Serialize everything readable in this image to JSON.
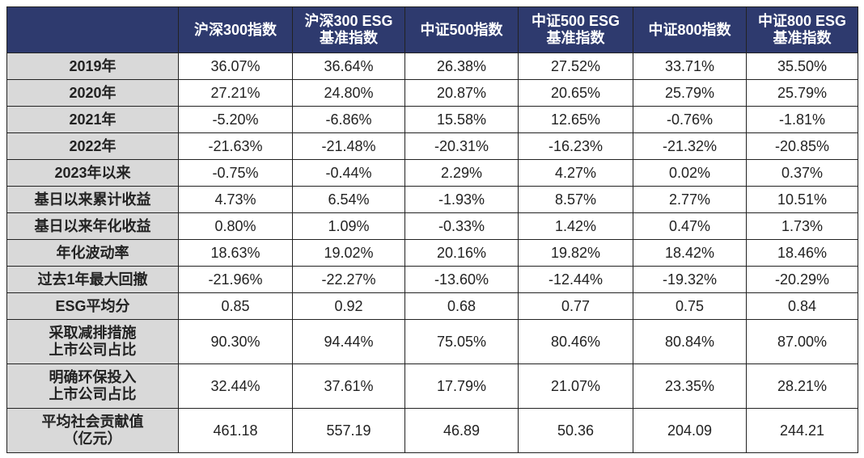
{
  "table": {
    "columns": [
      "沪深300指数",
      "沪深300 ESG\n基准指数",
      "中证500指数",
      "中证500 ESG\n基准指数",
      "中证800指数",
      "中证800 ESG\n基准指数"
    ],
    "rows": [
      {
        "label": "2019年",
        "values": [
          "36.07%",
          "36.64%",
          "26.38%",
          "27.52%",
          "33.71%",
          "35.50%"
        ]
      },
      {
        "label": "2020年",
        "values": [
          "27.21%",
          "24.80%",
          "20.87%",
          "20.65%",
          "25.79%",
          "25.79%"
        ]
      },
      {
        "label": "2021年",
        "values": [
          "-5.20%",
          "-6.86%",
          "15.58%",
          "12.65%",
          "-0.76%",
          "-1.81%"
        ]
      },
      {
        "label": "2022年",
        "values": [
          "-21.63%",
          "-21.48%",
          "-20.31%",
          "-16.23%",
          "-21.32%",
          "-20.85%"
        ]
      },
      {
        "label": "2023年以来",
        "values": [
          "-0.75%",
          "-0.44%",
          "2.29%",
          "4.27%",
          "0.02%",
          "0.37%"
        ]
      },
      {
        "label": "基日以来累计收益",
        "values": [
          "4.73%",
          "6.54%",
          "-1.93%",
          "8.57%",
          "2.77%",
          "10.51%"
        ]
      },
      {
        "label": "基日以来年化收益",
        "values": [
          "0.80%",
          "1.09%",
          "-0.33%",
          "1.42%",
          "0.47%",
          "1.73%"
        ]
      },
      {
        "label": "年化波动率",
        "values": [
          "18.63%",
          "19.02%",
          "20.16%",
          "19.82%",
          "18.42%",
          "18.46%"
        ]
      },
      {
        "label": "过去1年最大回撤",
        "values": [
          "-21.96%",
          "-22.27%",
          "-13.60%",
          "-12.44%",
          "-19.32%",
          "-20.29%"
        ]
      },
      {
        "label": "ESG平均分",
        "values": [
          "0.85",
          "0.92",
          "0.68",
          "0.77",
          "0.75",
          "0.84"
        ]
      },
      {
        "label": "采取减排措施\n上市公司占比",
        "values": [
          "90.30%",
          "94.44%",
          "75.05%",
          "80.46%",
          "80.84%",
          "87.00%"
        ]
      },
      {
        "label": "明确环保投入\n上市公司占比",
        "values": [
          "32.44%",
          "37.61%",
          "17.79%",
          "21.07%",
          "23.35%",
          "28.21%"
        ]
      },
      {
        "label": "平均社会贡献值\n（亿元）",
        "values": [
          "461.18",
          "557.19",
          "46.89",
          "50.36",
          "204.09",
          "244.21"
        ]
      }
    ]
  }
}
